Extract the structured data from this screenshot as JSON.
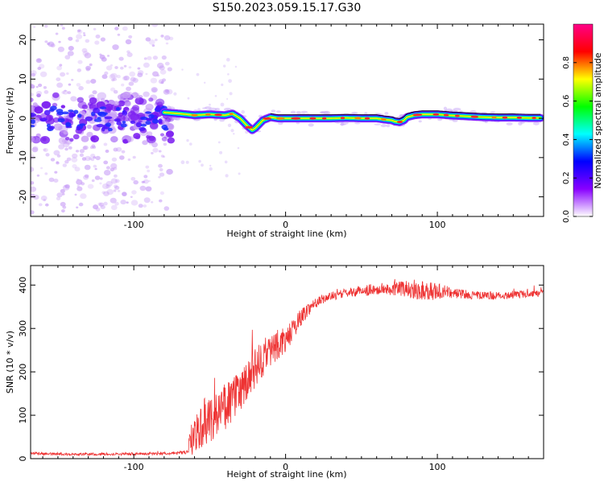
{
  "title": "S150.2023.059.15.17.G30",
  "chart_data": [
    {
      "type": "heatmap",
      "xlabel": "Height of straight line (km)",
      "ylabel": "Frequency (Hz)",
      "xlim": [
        -168,
        170
      ],
      "ylim": [
        -25,
        24
      ],
      "xticks": [
        -100,
        0,
        100
      ],
      "xtick_labels": [
        "-100",
        "0",
        "100"
      ],
      "yticks": [
        -20,
        -10,
        0,
        10,
        20
      ],
      "ytick_labels": [
        "-20",
        "-10",
        "0",
        "10",
        "20"
      ],
      "colorbar": {
        "label": "Normalized spectral amplitude",
        "range": [
          0,
          1
        ],
        "ticks": [
          0.0,
          0.2,
          0.4,
          0.6,
          0.8
        ],
        "tick_labels": [
          "0.0",
          "0.2",
          "0.4",
          "0.6",
          "0.8"
        ],
        "colors": [
          "#ffffff",
          "#8800ff",
          "#0000ff",
          "#00ffff",
          "#00ff00",
          "#ffff00",
          "#ff0000",
          "#ff0088"
        ]
      },
      "ridge": {
        "x": [
          -80,
          -70,
          -60,
          -50,
          -40,
          -35,
          -30,
          -25,
          -22,
          -20,
          -15,
          -10,
          -5,
          0,
          10,
          20,
          30,
          40,
          50,
          55,
          60,
          65,
          70,
          72,
          75,
          78,
          80,
          85,
          90,
          100,
          110,
          120,
          130,
          140,
          150,
          160,
          168
        ],
        "y": [
          1.5,
          1.2,
          0.8,
          1.0,
          0.8,
          1.2,
          0.0,
          -2.0,
          -3.0,
          -2.5,
          -0.5,
          0.3,
          0.0,
          0.0,
          0.0,
          0.0,
          0.0,
          0.1,
          0.0,
          0.0,
          0.0,
          -0.3,
          -0.5,
          -0.8,
          -1.0,
          -0.5,
          0.3,
          0.8,
          1.0,
          1.0,
          0.7,
          0.5,
          0.3,
          0.2,
          0.2,
          0.1,
          0.1
        ]
      }
    },
    {
      "type": "line",
      "xlabel": "Height of straight line (km)",
      "ylabel": "SNR (10 * v/v)",
      "xlim": [
        -168,
        170
      ],
      "ylim": [
        0,
        445
      ],
      "xticks": [
        -100,
        0,
        100
      ],
      "xtick_labels": [
        "-100",
        "0",
        "100"
      ],
      "yticks": [
        0,
        100,
        200,
        300,
        400
      ],
      "ytick_labels": [
        "0",
        "100",
        "200",
        "300",
        "400"
      ],
      "line_color": "#ee3333",
      "series": [
        {
          "x": [
            -168,
            -140,
            -100,
            -80,
            -65,
            -62,
            -55,
            -45,
            -40,
            -35,
            -30,
            -25,
            -20,
            -15,
            -10,
            -5,
            0,
            5,
            10,
            15,
            20,
            25,
            30,
            40,
            50,
            60,
            70,
            80,
            90,
            100,
            110,
            120,
            130,
            140,
            150,
            160,
            170
          ],
          "values": [
            12,
            10,
            11,
            12,
            14,
            45,
            80,
            105,
            120,
            135,
            155,
            175,
            205,
            230,
            250,
            265,
            270,
            300,
            325,
            345,
            360,
            368,
            374,
            382,
            387,
            390,
            392,
            392,
            388,
            385,
            382,
            378,
            375,
            375,
            378,
            380,
            380
          ],
          "noise": [
            3,
            3,
            3,
            3,
            4,
            40,
            55,
            55,
            55,
            55,
            50,
            50,
            50,
            45,
            40,
            35,
            30,
            25,
            20,
            15,
            12,
            10,
            10,
            10,
            12,
            14,
            15,
            20,
            25,
            20,
            12,
            10,
            10,
            9,
            9,
            8,
            8
          ]
        }
      ]
    }
  ]
}
